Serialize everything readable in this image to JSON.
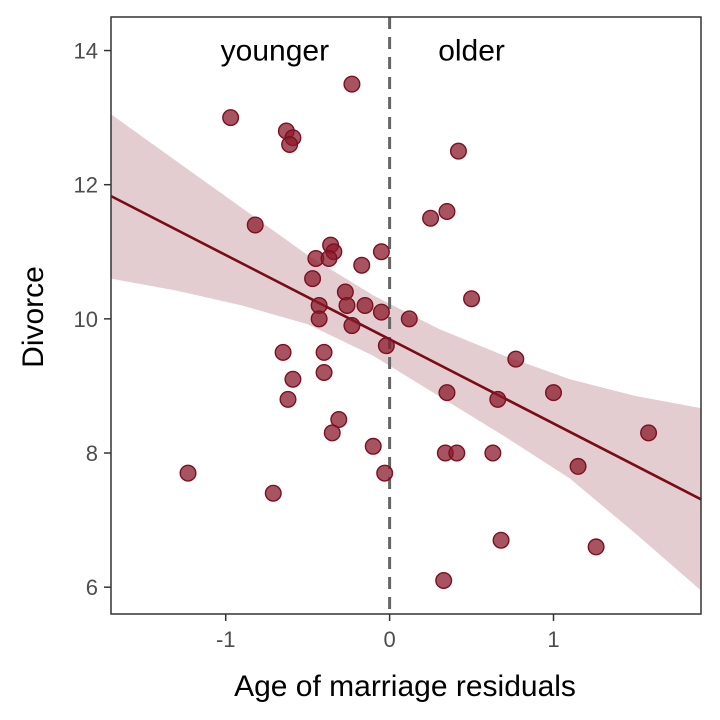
{
  "chart_data": {
    "type": "scatter",
    "title": "",
    "xlabel": "Age of marriage residuals",
    "ylabel": "Divorce",
    "xlim": [
      -1.7,
      1.9
    ],
    "ylim": [
      5.6,
      14.5
    ],
    "x_ticks": [
      -1,
      0,
      1
    ],
    "x_tick_labels": [
      "-1",
      "0",
      "1"
    ],
    "y_ticks": [
      6,
      8,
      10,
      12,
      14
    ],
    "y_tick_labels": [
      "6",
      "8",
      "10",
      "12",
      "14"
    ],
    "grid": false,
    "annotations": [
      {
        "text": "younger",
        "x": -0.7,
        "y": 14.0
      },
      {
        "text": "older",
        "x": 0.5,
        "y": 14.0
      }
    ],
    "reference_line": {
      "x": 0,
      "style": "dashed"
    },
    "regression": {
      "x": [
        -1.7,
        1.9
      ],
      "y": [
        11.83,
        7.31
      ],
      "band_x": [
        -1.7,
        -1.3,
        -0.9,
        -0.5,
        -0.1,
        0.3,
        0.7,
        1.1,
        1.5,
        1.9
      ],
      "band_lower": [
        10.6,
        10.42,
        10.2,
        9.92,
        9.45,
        8.85,
        8.25,
        7.62,
        6.8,
        5.95
      ],
      "band_upper": [
        13.05,
        12.35,
        11.65,
        10.95,
        10.35,
        9.85,
        9.45,
        9.1,
        8.85,
        8.67
      ]
    },
    "points": [
      {
        "x": -0.23,
        "y": 13.5
      },
      {
        "x": -0.97,
        "y": 13.0
      },
      {
        "x": -0.63,
        "y": 12.8
      },
      {
        "x": -0.59,
        "y": 12.7
      },
      {
        "x": -0.61,
        "y": 12.6
      },
      {
        "x": 0.42,
        "y": 12.5
      },
      {
        "x": 0.35,
        "y": 11.6
      },
      {
        "x": 0.25,
        "y": 11.5
      },
      {
        "x": -0.82,
        "y": 11.4
      },
      {
        "x": -0.36,
        "y": 11.1
      },
      {
        "x": -0.34,
        "y": 11.0
      },
      {
        "x": -0.05,
        "y": 11.0
      },
      {
        "x": -0.45,
        "y": 10.9
      },
      {
        "x": -0.37,
        "y": 10.9
      },
      {
        "x": -0.17,
        "y": 10.8
      },
      {
        "x": -0.47,
        "y": 10.6
      },
      {
        "x": -0.27,
        "y": 10.4
      },
      {
        "x": 0.5,
        "y": 10.3
      },
      {
        "x": -0.43,
        "y": 10.2
      },
      {
        "x": -0.26,
        "y": 10.2
      },
      {
        "x": -0.15,
        "y": 10.2
      },
      {
        "x": -0.05,
        "y": 10.1
      },
      {
        "x": -0.43,
        "y": 10.0
      },
      {
        "x": 0.12,
        "y": 10.0
      },
      {
        "x": -0.23,
        "y": 9.9
      },
      {
        "x": -0.02,
        "y": 9.6
      },
      {
        "x": -0.65,
        "y": 9.5
      },
      {
        "x": -0.4,
        "y": 9.5
      },
      {
        "x": 0.77,
        "y": 9.4
      },
      {
        "x": -0.4,
        "y": 9.2
      },
      {
        "x": -0.59,
        "y": 9.1
      },
      {
        "x": 0.35,
        "y": 8.9
      },
      {
        "x": 1.0,
        "y": 8.9
      },
      {
        "x": -0.62,
        "y": 8.8
      },
      {
        "x": 0.66,
        "y": 8.8
      },
      {
        "x": -0.31,
        "y": 8.5
      },
      {
        "x": -0.35,
        "y": 8.3
      },
      {
        "x": 1.58,
        "y": 8.3
      },
      {
        "x": -0.1,
        "y": 8.1
      },
      {
        "x": 0.34,
        "y": 8.0
      },
      {
        "x": 0.41,
        "y": 8.0
      },
      {
        "x": 0.63,
        "y": 8.0
      },
      {
        "x": 1.15,
        "y": 7.8
      },
      {
        "x": -1.23,
        "y": 7.7
      },
      {
        "x": -0.03,
        "y": 7.7
      },
      {
        "x": -0.71,
        "y": 7.4
      },
      {
        "x": 0.68,
        "y": 6.7
      },
      {
        "x": 1.26,
        "y": 6.6
      },
      {
        "x": 0.33,
        "y": 6.1
      }
    ],
    "colors": {
      "point_fill": "#8b1a2b",
      "point_stroke": "#7a1020",
      "line": "#7a0c16",
      "band": "#e3cdd0",
      "reference": "#666666",
      "frame": "#333333",
      "tick_text": "#4d4d4d"
    }
  }
}
